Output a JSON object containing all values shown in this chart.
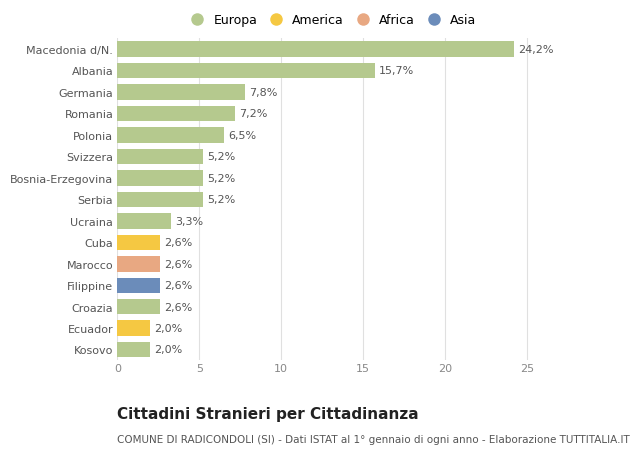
{
  "categories": [
    "Macedonia d/N.",
    "Albania",
    "Germania",
    "Romania",
    "Polonia",
    "Svizzera",
    "Bosnia-Erzegovina",
    "Serbia",
    "Ucraina",
    "Cuba",
    "Marocco",
    "Filippine",
    "Croazia",
    "Ecuador",
    "Kosovo"
  ],
  "values": [
    24.2,
    15.7,
    7.8,
    7.2,
    6.5,
    5.2,
    5.2,
    5.2,
    3.3,
    2.6,
    2.6,
    2.6,
    2.6,
    2.0,
    2.0
  ],
  "labels": [
    "24,2%",
    "15,7%",
    "7,8%",
    "7,2%",
    "6,5%",
    "5,2%",
    "5,2%",
    "5,2%",
    "3,3%",
    "2,6%",
    "2,6%",
    "2,6%",
    "2,6%",
    "2,0%",
    "2,0%"
  ],
  "continents": [
    "Europa",
    "Europa",
    "Europa",
    "Europa",
    "Europa",
    "Europa",
    "Europa",
    "Europa",
    "Europa",
    "America",
    "Africa",
    "Asia",
    "Europa",
    "America",
    "Europa"
  ],
  "colors": {
    "Europa": "#b5c98e",
    "America": "#f5c842",
    "Africa": "#e8a882",
    "Asia": "#6b8cba"
  },
  "xlim": [
    0,
    26
  ],
  "xticks": [
    0,
    5,
    10,
    15,
    20,
    25
  ],
  "title": "Cittadini Stranieri per Cittadinanza",
  "subtitle": "COMUNE DI RADICONDOLI (SI) - Dati ISTAT al 1° gennaio di ogni anno - Elaborazione TUTTITALIA.IT",
  "background_color": "#ffffff",
  "grid_color": "#e0e0e0",
  "bar_height": 0.72,
  "label_fontsize": 8,
  "tick_fontsize": 8,
  "ytick_fontsize": 8,
  "title_fontsize": 11,
  "subtitle_fontsize": 7.5
}
